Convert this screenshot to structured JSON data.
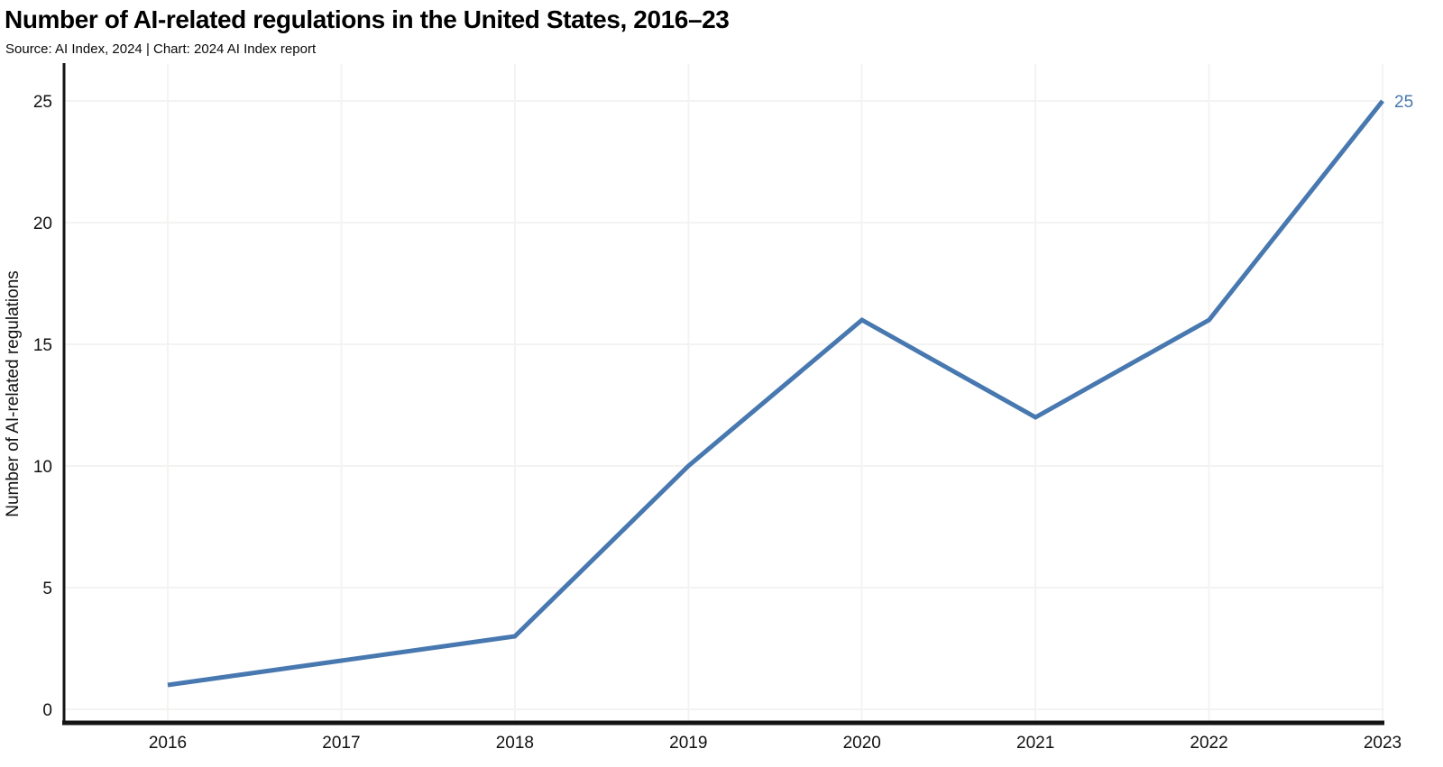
{
  "chart_data": {
    "type": "line",
    "title": "Number of AI-related regulations in the United States, 2016–23",
    "subtitle": "Source: AI Index, 2024 | Chart: 2024 AI Index report",
    "x": [
      "2016",
      "2017",
      "2018",
      "2019",
      "2020",
      "2021",
      "2022",
      "2023"
    ],
    "values": [
      1,
      2,
      3,
      10,
      16,
      12,
      16,
      25
    ],
    "xlabel": "",
    "ylabel": "Number of AI-related regulations",
    "ylim": [
      0,
      25
    ],
    "yticks": [
      0,
      5,
      10,
      15,
      20,
      25
    ],
    "grid": true,
    "legend": "none",
    "end_label": "25",
    "colors": {
      "line": "#4878b0",
      "end_label": "#4878b0",
      "axis": "#141414",
      "gridline": "#f4f3f2",
      "tick_text": "#111111"
    }
  }
}
